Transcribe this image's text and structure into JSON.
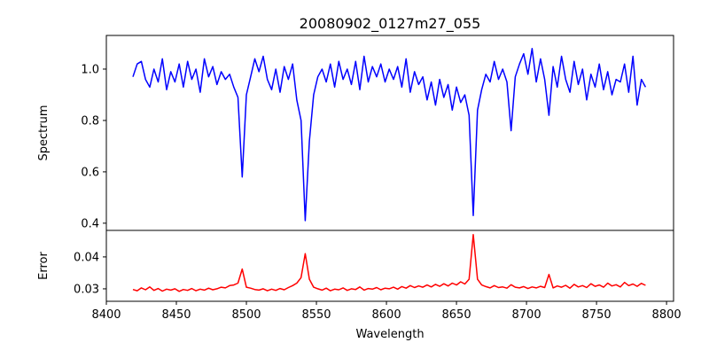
{
  "chart_data": {
    "type": "line",
    "title": "20080902_0127m27_055",
    "xlabel": "Wavelength",
    "xlim": [
      8400,
      8805
    ],
    "xticks": [
      8400,
      8450,
      8500,
      8550,
      8600,
      8650,
      8700,
      8750,
      8800
    ],
    "x_start": 8419,
    "x_step": 3,
    "panels": [
      {
        "name": "spectrum",
        "ylabel": "Spectrum",
        "ylim": [
          0.372,
          1.131
        ],
        "yticks": [
          0.4,
          0.6,
          0.8,
          1.0
        ],
        "ytick_labels": [
          "0.4",
          "0.6",
          "0.8",
          "1.0"
        ],
        "color": "#0000ff",
        "values": [
          0.97,
          1.02,
          1.03,
          0.96,
          0.93,
          1.0,
          0.95,
          1.04,
          0.92,
          0.99,
          0.95,
          1.02,
          0.93,
          1.03,
          0.96,
          1.0,
          0.91,
          1.04,
          0.97,
          1.01,
          0.94,
          0.99,
          0.96,
          0.98,
          0.93,
          0.89,
          0.58,
          0.9,
          0.97,
          1.04,
          0.99,
          1.05,
          0.96,
          0.92,
          1.0,
          0.91,
          1.01,
          0.96,
          1.02,
          0.88,
          0.8,
          0.41,
          0.72,
          0.9,
          0.97,
          1.0,
          0.95,
          1.02,
          0.93,
          1.03,
          0.96,
          1.0,
          0.94,
          1.03,
          0.92,
          1.05,
          0.95,
          1.01,
          0.97,
          1.02,
          0.95,
          1.0,
          0.96,
          1.01,
          0.93,
          1.04,
          0.91,
          0.99,
          0.94,
          0.97,
          0.88,
          0.95,
          0.86,
          0.96,
          0.89,
          0.94,
          0.84,
          0.93,
          0.87,
          0.9,
          0.82,
          0.43,
          0.84,
          0.92,
          0.98,
          0.95,
          1.03,
          0.96,
          1.0,
          0.95,
          0.76,
          0.97,
          1.02,
          1.06,
          0.98,
          1.08,
          0.95,
          1.04,
          0.96,
          0.82,
          1.01,
          0.93,
          1.05,
          0.96,
          0.91,
          1.03,
          0.94,
          1.0,
          0.88,
          0.98,
          0.93,
          1.02,
          0.92,
          0.99,
          0.9,
          0.96,
          0.95,
          1.02,
          0.91,
          1.05,
          0.86,
          0.96,
          0.93
        ]
      },
      {
        "name": "error",
        "ylabel": "Error",
        "ylim": [
          0.0261,
          0.0483
        ],
        "yticks": [
          0.03,
          0.04
        ],
        "ytick_labels": [
          "0.03",
          "0.04"
        ],
        "color": "#ff0000",
        "values": [
          0.0298,
          0.0294,
          0.0303,
          0.0297,
          0.0306,
          0.0295,
          0.0301,
          0.0293,
          0.0299,
          0.0296,
          0.03,
          0.0292,
          0.0298,
          0.0295,
          0.0301,
          0.0294,
          0.0299,
          0.0296,
          0.0302,
          0.0297,
          0.03,
          0.0305,
          0.0303,
          0.031,
          0.0312,
          0.0318,
          0.0362,
          0.0305,
          0.0302,
          0.0298,
          0.0296,
          0.03,
          0.0294,
          0.0299,
          0.0295,
          0.0301,
          0.0297,
          0.0304,
          0.031,
          0.0318,
          0.0335,
          0.041,
          0.033,
          0.0305,
          0.03,
          0.0296,
          0.0302,
          0.0294,
          0.0299,
          0.0297,
          0.0303,
          0.0295,
          0.03,
          0.0298,
          0.0306,
          0.0296,
          0.0301,
          0.0299,
          0.0304,
          0.0297,
          0.0302,
          0.03,
          0.0305,
          0.0299,
          0.0307,
          0.0302,
          0.031,
          0.0304,
          0.0309,
          0.0305,
          0.0312,
          0.0306,
          0.0314,
          0.0308,
          0.0316,
          0.0309,
          0.0318,
          0.0312,
          0.0322,
          0.0315,
          0.033,
          0.047,
          0.033,
          0.0312,
          0.0307,
          0.0303,
          0.031,
          0.0304,
          0.0306,
          0.0302,
          0.0313,
          0.0305,
          0.0303,
          0.0307,
          0.0301,
          0.0306,
          0.0303,
          0.0308,
          0.0304,
          0.0345,
          0.0303,
          0.0309,
          0.0305,
          0.0311,
          0.0302,
          0.0314,
          0.0306,
          0.031,
          0.0304,
          0.0316,
          0.0308,
          0.0312,
          0.0305,
          0.0318,
          0.0309,
          0.0313,
          0.0306,
          0.032,
          0.031,
          0.0315,
          0.0308,
          0.0317,
          0.0311
        ]
      }
    ]
  }
}
